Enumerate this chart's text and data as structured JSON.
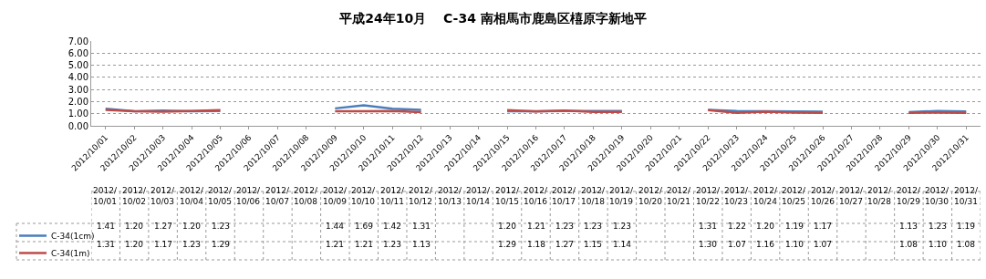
{
  "chart_data": {
    "type": "line",
    "title": "平成24年10月　 C-34 南相馬市鹿島区橲原字新地平",
    "categories": [
      "2012/10/01",
      "2012/10/02",
      "2012/10/03",
      "2012/10/04",
      "2012/10/05",
      "2012/10/06",
      "2012/10/07",
      "2012/10/08",
      "2012/10/09",
      "2012/10/10",
      "2012/10/11",
      "2012/10/12",
      "2012/10/13",
      "2012/10/14",
      "2012/10/15",
      "2012/10/16",
      "2012/10/17",
      "2012/10/18",
      "2012/10/19",
      "2012/10/20",
      "2012/10/21",
      "2012/10/22",
      "2012/10/23",
      "2012/10/24",
      "2012/10/25",
      "2012/10/26",
      "2012/10/27",
      "2012/10/28",
      "2012/10/29",
      "2012/10/30",
      "2012/10/31"
    ],
    "series": [
      {
        "name": "C-34(1cm)",
        "color": "#4a7ebb",
        "values": [
          1.41,
          1.2,
          1.27,
          1.2,
          1.23,
          null,
          null,
          null,
          1.44,
          1.69,
          1.42,
          1.31,
          null,
          null,
          1.2,
          1.21,
          1.23,
          1.23,
          1.23,
          null,
          null,
          1.31,
          1.22,
          1.2,
          1.19,
          1.17,
          null,
          null,
          1.13,
          1.23,
          1.19
        ],
        "value_labels": [
          "1.41",
          "1.20",
          "1.27",
          "1.20",
          "1.23",
          null,
          null,
          null,
          "1.44",
          "1.69",
          "1.42",
          "1.31",
          null,
          null,
          "1.20",
          "1.21",
          "1.23",
          "1.23",
          "1.23",
          null,
          null,
          "1.31",
          "1.22",
          "1.20",
          "1.19",
          "1.17",
          null,
          null,
          "1.13",
          "1.23",
          "1.19"
        ]
      },
      {
        "name": "C-34(1m)",
        "color": "#be4b48",
        "values": [
          1.31,
          1.2,
          1.17,
          1.23,
          1.29,
          null,
          null,
          null,
          1.21,
          1.21,
          1.23,
          1.13,
          null,
          null,
          1.29,
          1.18,
          1.27,
          1.15,
          1.14,
          null,
          null,
          1.3,
          1.07,
          1.16,
          1.1,
          1.07,
          null,
          null,
          1.08,
          1.1,
          1.08
        ],
        "value_labels": [
          "1.31",
          "1.20",
          "1.17",
          "1.23",
          "1.29",
          null,
          null,
          null,
          "1.21",
          "1.21",
          "1.23",
          "1.13",
          null,
          null,
          "1.29",
          "1.18",
          "1.27",
          "1.15",
          "1.14",
          null,
          null,
          "1.30",
          "1.07",
          "1.16",
          "1.10",
          "1.07",
          null,
          null,
          "1.08",
          "1.10",
          "1.08"
        ]
      }
    ],
    "ylim": [
      0,
      7
    ],
    "yticks": [
      {
        "value": 0,
        "label": "0.00"
      },
      {
        "value": 1,
        "label": "1.00"
      },
      {
        "value": 2,
        "label": "2.00"
      },
      {
        "value": 3,
        "label": "3.00"
      },
      {
        "value": 4,
        "label": "4.00"
      },
      {
        "value": 5,
        "label": "5.00"
      },
      {
        "value": 6,
        "label": "6.00"
      },
      {
        "value": 7,
        "label": "7.00"
      }
    ],
    "grid": "y",
    "legend": "bottom left",
    "marker": "none",
    "line_style": "solid"
  }
}
